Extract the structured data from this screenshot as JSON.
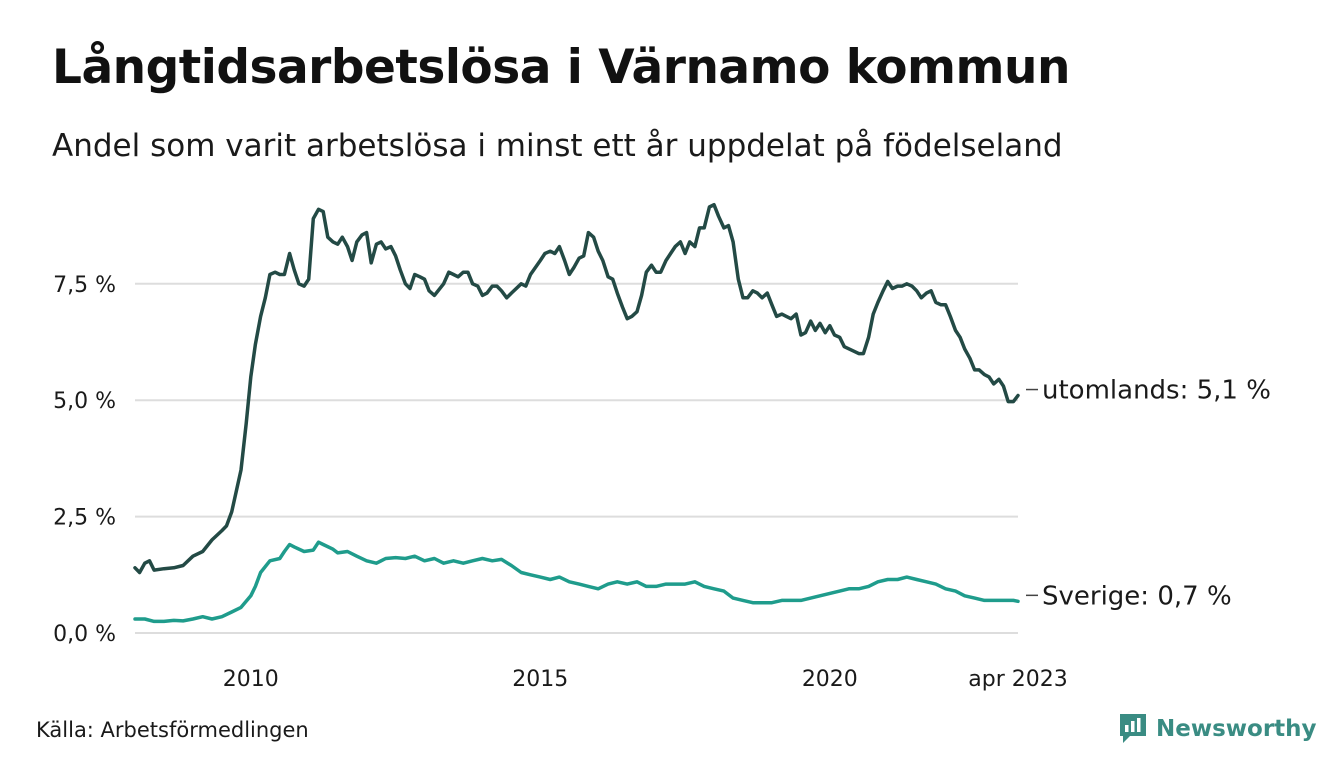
{
  "title": "Långtidsarbetslösa i Värnamo kommun",
  "subtitle": "Andel som varit arbetslösa i minst ett år uppdelat på födelseland",
  "source": "Källa: Arbetsförmedlingen",
  "brand": {
    "name": "Newsworthy",
    "icon": "newsworthy-logo-icon",
    "color": "#3a8c83"
  },
  "chart_data": {
    "type": "line",
    "title": "Långtidsarbetslösa i Värnamo kommun",
    "subtitle": "Andel som varit arbetslösa i minst ett år uppdelat på födelseland",
    "xlabel": "",
    "ylabel": "",
    "ylim": [
      0,
      9.3
    ],
    "xlim": [
      2008.0,
      2023.25
    ],
    "y_ticks": [
      {
        "value": 0,
        "label": "0,0 %"
      },
      {
        "value": 2.5,
        "label": "2,5 %"
      },
      {
        "value": 5,
        "label": "5,0 %"
      },
      {
        "value": 7.5,
        "label": "7,5 %"
      }
    ],
    "x_ticks": [
      {
        "value": 2010,
        "label": "2010"
      },
      {
        "value": 2015,
        "label": "2015"
      },
      {
        "value": 2020,
        "label": "2020"
      },
      {
        "value": 2023.25,
        "label": "apr 2023"
      }
    ],
    "grid": true,
    "legend": "none",
    "series": [
      {
        "name": "utomlands",
        "end_label": "utomlands: 5,1 %",
        "color": "#234a45",
        "points": [
          [
            2008.0,
            1.4
          ],
          [
            2008.08,
            1.3
          ],
          [
            2008.17,
            1.5
          ],
          [
            2008.25,
            1.55
          ],
          [
            2008.33,
            1.35
          ],
          [
            2008.5,
            1.38
          ],
          [
            2008.67,
            1.4
          ],
          [
            2008.83,
            1.45
          ],
          [
            2009.0,
            1.65
          ],
          [
            2009.17,
            1.75
          ],
          [
            2009.33,
            2.0
          ],
          [
            2009.5,
            2.2
          ],
          [
            2009.58,
            2.3
          ],
          [
            2009.67,
            2.6
          ],
          [
            2009.83,
            3.5
          ],
          [
            2009.92,
            4.5
          ],
          [
            2010.0,
            5.5
          ],
          [
            2010.08,
            6.2
          ],
          [
            2010.17,
            6.8
          ],
          [
            2010.25,
            7.2
          ],
          [
            2010.33,
            7.7
          ],
          [
            2010.42,
            7.75
          ],
          [
            2010.5,
            7.7
          ],
          [
            2010.58,
            7.7
          ],
          [
            2010.67,
            8.15
          ],
          [
            2010.75,
            7.8
          ],
          [
            2010.83,
            7.5
          ],
          [
            2010.92,
            7.45
          ],
          [
            2011.0,
            7.6
          ],
          [
            2011.08,
            8.9
          ],
          [
            2011.17,
            9.1
          ],
          [
            2011.25,
            9.05
          ],
          [
            2011.33,
            8.5
          ],
          [
            2011.42,
            8.4
          ],
          [
            2011.5,
            8.35
          ],
          [
            2011.58,
            8.5
          ],
          [
            2011.67,
            8.3
          ],
          [
            2011.75,
            8.0
          ],
          [
            2011.83,
            8.4
          ],
          [
            2011.92,
            8.55
          ],
          [
            2012.0,
            8.6
          ],
          [
            2012.08,
            7.95
          ],
          [
            2012.17,
            8.35
          ],
          [
            2012.25,
            8.4
          ],
          [
            2012.33,
            8.25
          ],
          [
            2012.42,
            8.3
          ],
          [
            2012.5,
            8.1
          ],
          [
            2012.58,
            7.8
          ],
          [
            2012.67,
            7.5
          ],
          [
            2012.75,
            7.4
          ],
          [
            2012.83,
            7.7
          ],
          [
            2012.92,
            7.65
          ],
          [
            2013.0,
            7.6
          ],
          [
            2013.08,
            7.35
          ],
          [
            2013.17,
            7.25
          ],
          [
            2013.33,
            7.5
          ],
          [
            2013.42,
            7.75
          ],
          [
            2013.5,
            7.7
          ],
          [
            2013.58,
            7.65
          ],
          [
            2013.67,
            7.75
          ],
          [
            2013.75,
            7.75
          ],
          [
            2013.83,
            7.5
          ],
          [
            2013.92,
            7.45
          ],
          [
            2014.0,
            7.25
          ],
          [
            2014.08,
            7.3
          ],
          [
            2014.17,
            7.45
          ],
          [
            2014.25,
            7.45
          ],
          [
            2014.33,
            7.35
          ],
          [
            2014.42,
            7.2
          ],
          [
            2014.5,
            7.3
          ],
          [
            2014.67,
            7.5
          ],
          [
            2014.75,
            7.45
          ],
          [
            2014.83,
            7.7
          ],
          [
            2015.0,
            8.0
          ],
          [
            2015.08,
            8.15
          ],
          [
            2015.17,
            8.2
          ],
          [
            2015.25,
            8.15
          ],
          [
            2015.33,
            8.3
          ],
          [
            2015.42,
            8.0
          ],
          [
            2015.5,
            7.7
          ],
          [
            2015.58,
            7.85
          ],
          [
            2015.67,
            8.05
          ],
          [
            2015.75,
            8.1
          ],
          [
            2015.83,
            8.6
          ],
          [
            2015.92,
            8.5
          ],
          [
            2016.0,
            8.2
          ],
          [
            2016.08,
            8.0
          ],
          [
            2016.17,
            7.65
          ],
          [
            2016.25,
            7.6
          ],
          [
            2016.33,
            7.3
          ],
          [
            2016.42,
            7.0
          ],
          [
            2016.5,
            6.75
          ],
          [
            2016.58,
            6.8
          ],
          [
            2016.67,
            6.9
          ],
          [
            2016.75,
            7.25
          ],
          [
            2016.83,
            7.75
          ],
          [
            2016.92,
            7.9
          ],
          [
            2017.0,
            7.75
          ],
          [
            2017.08,
            7.75
          ],
          [
            2017.17,
            8.0
          ],
          [
            2017.25,
            8.15
          ],
          [
            2017.33,
            8.3
          ],
          [
            2017.42,
            8.4
          ],
          [
            2017.5,
            8.15
          ],
          [
            2017.58,
            8.4
          ],
          [
            2017.67,
            8.3
          ],
          [
            2017.75,
            8.7
          ],
          [
            2017.83,
            8.7
          ],
          [
            2017.92,
            9.15
          ],
          [
            2018.0,
            9.2
          ],
          [
            2018.08,
            8.95
          ],
          [
            2018.17,
            8.7
          ],
          [
            2018.25,
            8.75
          ],
          [
            2018.33,
            8.4
          ],
          [
            2018.42,
            7.6
          ],
          [
            2018.5,
            7.2
          ],
          [
            2018.58,
            7.2
          ],
          [
            2018.67,
            7.35
          ],
          [
            2018.75,
            7.3
          ],
          [
            2018.83,
            7.2
          ],
          [
            2018.92,
            7.3
          ],
          [
            2019.0,
            7.05
          ],
          [
            2019.08,
            6.8
          ],
          [
            2019.17,
            6.85
          ],
          [
            2019.25,
            6.8
          ],
          [
            2019.33,
            6.75
          ],
          [
            2019.42,
            6.85
          ],
          [
            2019.5,
            6.4
          ],
          [
            2019.58,
            6.45
          ],
          [
            2019.67,
            6.7
          ],
          [
            2019.75,
            6.5
          ],
          [
            2019.83,
            6.65
          ],
          [
            2019.92,
            6.45
          ],
          [
            2020.0,
            6.6
          ],
          [
            2020.08,
            6.4
          ],
          [
            2020.17,
            6.35
          ],
          [
            2020.25,
            6.15
          ],
          [
            2020.42,
            6.05
          ],
          [
            2020.5,
            6.0
          ],
          [
            2020.58,
            6.0
          ],
          [
            2020.67,
            6.35
          ],
          [
            2020.75,
            6.85
          ],
          [
            2020.83,
            7.1
          ],
          [
            2020.92,
            7.35
          ],
          [
            2021.0,
            7.55
          ],
          [
            2021.08,
            7.4
          ],
          [
            2021.17,
            7.45
          ],
          [
            2021.25,
            7.45
          ],
          [
            2021.33,
            7.5
          ],
          [
            2021.42,
            7.45
          ],
          [
            2021.5,
            7.35
          ],
          [
            2021.58,
            7.2
          ],
          [
            2021.67,
            7.3
          ],
          [
            2021.75,
            7.35
          ],
          [
            2021.83,
            7.1
          ],
          [
            2021.92,
            7.05
          ],
          [
            2022.0,
            7.05
          ],
          [
            2022.08,
            6.8
          ],
          [
            2022.17,
            6.5
          ],
          [
            2022.25,
            6.35
          ],
          [
            2022.33,
            6.1
          ],
          [
            2022.42,
            5.9
          ],
          [
            2022.5,
            5.65
          ],
          [
            2022.58,
            5.65
          ],
          [
            2022.67,
            5.55
          ],
          [
            2022.75,
            5.5
          ],
          [
            2022.83,
            5.35
          ],
          [
            2022.92,
            5.45
          ],
          [
            2023.0,
            5.3
          ],
          [
            2023.08,
            4.97
          ],
          [
            2023.17,
            4.97
          ],
          [
            2023.25,
            5.1
          ]
        ]
      },
      {
        "name": "Sverige",
        "end_label": "Sverige: 0,7 %",
        "color": "#1f9c8c",
        "points": [
          [
            2008.0,
            0.3
          ],
          [
            2008.17,
            0.3
          ],
          [
            2008.33,
            0.25
          ],
          [
            2008.5,
            0.25
          ],
          [
            2008.67,
            0.27
          ],
          [
            2008.83,
            0.26
          ],
          [
            2009.0,
            0.3
          ],
          [
            2009.17,
            0.35
          ],
          [
            2009.33,
            0.3
          ],
          [
            2009.5,
            0.35
          ],
          [
            2009.67,
            0.45
          ],
          [
            2009.83,
            0.55
          ],
          [
            2010.0,
            0.8
          ],
          [
            2010.08,
            1.0
          ],
          [
            2010.17,
            1.3
          ],
          [
            2010.33,
            1.55
          ],
          [
            2010.5,
            1.6
          ],
          [
            2010.58,
            1.75
          ],
          [
            2010.67,
            1.9
          ],
          [
            2010.75,
            1.85
          ],
          [
            2010.92,
            1.75
          ],
          [
            2011.08,
            1.78
          ],
          [
            2011.17,
            1.95
          ],
          [
            2011.25,
            1.9
          ],
          [
            2011.42,
            1.8
          ],
          [
            2011.5,
            1.72
          ],
          [
            2011.67,
            1.75
          ],
          [
            2011.83,
            1.65
          ],
          [
            2012.0,
            1.55
          ],
          [
            2012.17,
            1.5
          ],
          [
            2012.33,
            1.6
          ],
          [
            2012.5,
            1.62
          ],
          [
            2012.67,
            1.6
          ],
          [
            2012.83,
            1.65
          ],
          [
            2013.0,
            1.55
          ],
          [
            2013.17,
            1.6
          ],
          [
            2013.33,
            1.5
          ],
          [
            2013.5,
            1.55
          ],
          [
            2013.67,
            1.5
          ],
          [
            2013.83,
            1.55
          ],
          [
            2014.0,
            1.6
          ],
          [
            2014.17,
            1.55
          ],
          [
            2014.33,
            1.58
          ],
          [
            2014.5,
            1.45
          ],
          [
            2014.67,
            1.3
          ],
          [
            2014.83,
            1.25
          ],
          [
            2015.0,
            1.2
          ],
          [
            2015.17,
            1.15
          ],
          [
            2015.33,
            1.2
          ],
          [
            2015.5,
            1.1
          ],
          [
            2015.67,
            1.05
          ],
          [
            2015.83,
            1.0
          ],
          [
            2016.0,
            0.95
          ],
          [
            2016.17,
            1.05
          ],
          [
            2016.33,
            1.1
          ],
          [
            2016.5,
            1.05
          ],
          [
            2016.67,
            1.1
          ],
          [
            2016.83,
            1.0
          ],
          [
            2017.0,
            1.0
          ],
          [
            2017.17,
            1.05
          ],
          [
            2017.33,
            1.05
          ],
          [
            2017.5,
            1.05
          ],
          [
            2017.67,
            1.1
          ],
          [
            2017.83,
            1.0
          ],
          [
            2018.0,
            0.95
          ],
          [
            2018.17,
            0.9
          ],
          [
            2018.33,
            0.75
          ],
          [
            2018.5,
            0.7
          ],
          [
            2018.67,
            0.65
          ],
          [
            2018.83,
            0.65
          ],
          [
            2019.0,
            0.65
          ],
          [
            2019.17,
            0.7
          ],
          [
            2019.33,
            0.7
          ],
          [
            2019.5,
            0.7
          ],
          [
            2019.67,
            0.75
          ],
          [
            2019.83,
            0.8
          ],
          [
            2020.0,
            0.85
          ],
          [
            2020.17,
            0.9
          ],
          [
            2020.33,
            0.95
          ],
          [
            2020.5,
            0.95
          ],
          [
            2020.67,
            1.0
          ],
          [
            2020.83,
            1.1
          ],
          [
            2021.0,
            1.15
          ],
          [
            2021.17,
            1.15
          ],
          [
            2021.33,
            1.2
          ],
          [
            2021.5,
            1.15
          ],
          [
            2021.67,
            1.1
          ],
          [
            2021.83,
            1.05
          ],
          [
            2022.0,
            0.95
          ],
          [
            2022.17,
            0.9
          ],
          [
            2022.33,
            0.8
          ],
          [
            2022.5,
            0.75
          ],
          [
            2022.67,
            0.7
          ],
          [
            2022.83,
            0.7
          ],
          [
            2023.0,
            0.7
          ],
          [
            2023.17,
            0.7
          ],
          [
            2023.25,
            0.68
          ]
        ]
      }
    ]
  }
}
